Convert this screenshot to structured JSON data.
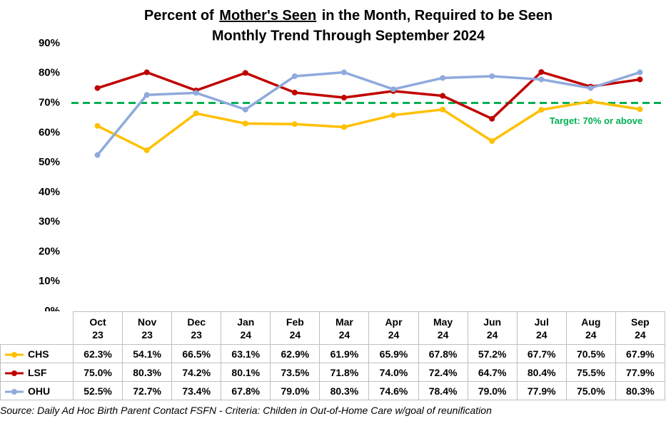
{
  "chart_data": {
    "type": "line",
    "title": [
      "Percent of",
      "Mother's Seen",
      "in the Month, Required to be Seen"
    ],
    "subtitle": "Monthly Trend Through September 2024",
    "categories": [
      "Oct 23",
      "Nov 23",
      "Dec 23",
      "Jan 24",
      "Feb 24",
      "Mar 24",
      "Apr 24",
      "May 24",
      "Jun 24",
      "Jul 24",
      "Aug 24",
      "Sep 24"
    ],
    "series": [
      {
        "name": "CHS",
        "color": "#ffc000",
        "values": [
          62.3,
          54.1,
          66.5,
          63.1,
          62.9,
          61.9,
          65.9,
          67.8,
          57.2,
          67.7,
          70.5,
          67.9
        ],
        "value_labels": [
          "62.3%",
          "54.1%",
          "66.5%",
          "63.1%",
          "62.9%",
          "61.9%",
          "65.9%",
          "67.8%",
          "57.2%",
          "67.7%",
          "70.5%",
          "67.9%"
        ]
      },
      {
        "name": "LSF",
        "color": "#c00000",
        "values": [
          75.0,
          80.3,
          74.2,
          80.1,
          73.5,
          71.8,
          74.0,
          72.4,
          64.7,
          80.4,
          75.5,
          77.9
        ],
        "value_labels": [
          "75.0%",
          "80.3%",
          "74.2%",
          "80.1%",
          "73.5%",
          "71.8%",
          "74.0%",
          "72.4%",
          "64.7%",
          "80.4%",
          "75.5%",
          "77.9%"
        ]
      },
      {
        "name": "OHU",
        "color": "#8faadc",
        "values": [
          52.5,
          72.7,
          73.4,
          67.8,
          79.0,
          80.3,
          74.6,
          78.4,
          79.0,
          77.9,
          75.0,
          80.3
        ],
        "value_labels": [
          "52.5%",
          "72.7%",
          "73.4%",
          "67.8%",
          "79.0%",
          "80.3%",
          "74.6%",
          "78.4%",
          "79.0%",
          "77.9%",
          "75.0%",
          "80.3%"
        ]
      }
    ],
    "ylim": [
      0,
      90
    ],
    "yticks": [
      {
        "value": 0,
        "label": "0%"
      },
      {
        "value": 10,
        "label": "10%"
      },
      {
        "value": 20,
        "label": "20%"
      },
      {
        "value": 30,
        "label": "30%"
      },
      {
        "value": 40,
        "label": "40%"
      },
      {
        "value": 50,
        "label": "50%"
      },
      {
        "value": 60,
        "label": "60%"
      },
      {
        "value": 70,
        "label": "70%"
      },
      {
        "value": 80,
        "label": "80%"
      },
      {
        "value": 90,
        "label": "90%"
      }
    ],
    "target": {
      "value": 70,
      "label": "Target: 70% or above",
      "color": "#00b050"
    },
    "source": "Source: Daily Ad Hoc Birth Parent Contact FSFN  -  Criteria: Childen in Out-of-Home Care w/goal of reunification"
  }
}
